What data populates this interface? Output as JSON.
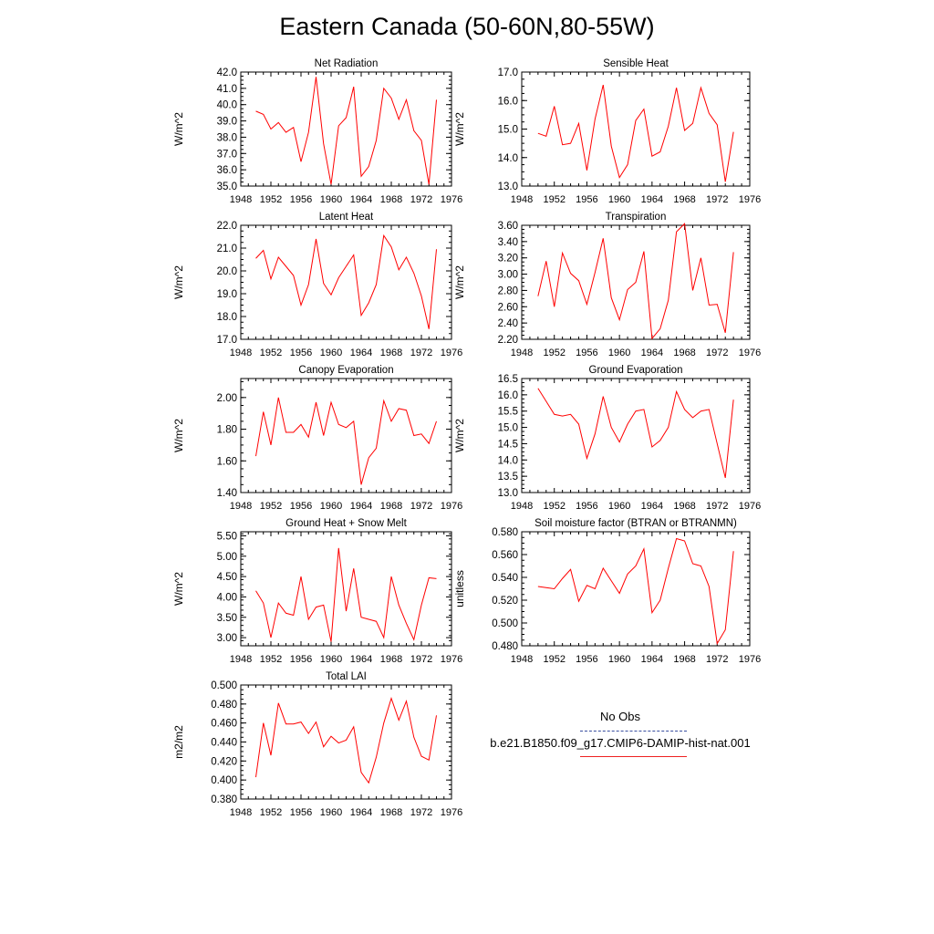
{
  "title": "Eastern Canada (50-60N,80-55W)",
  "legend": {
    "obs_label": "No Obs",
    "model_label": "b.e21.B1850.f09_g17.CMIP6-DAMIP-hist-nat.001",
    "obs_color": "#3a4fa0",
    "model_color": "#ff0000"
  },
  "chart_data": [
    {
      "type": "line",
      "title": "Net Radiation",
      "ylabel": "W/m^2",
      "xlim": [
        1948,
        1976
      ],
      "ylim": [
        35.0,
        42.0
      ],
      "xticks": [
        "1948",
        "1952",
        "1956",
        "1960",
        "1964",
        "1968",
        "1972",
        "1976"
      ],
      "yticks": [
        35.0,
        36.0,
        37.0,
        38.0,
        39.0,
        40.0,
        41.0,
        42.0
      ],
      "ydec": 1,
      "x": [
        1950,
        1951,
        1952,
        1953,
        1954,
        1955,
        1956,
        1957,
        1958,
        1959,
        1960,
        1961,
        1962,
        1963,
        1964,
        1965,
        1966,
        1967,
        1968,
        1969,
        1970,
        1971,
        1972,
        1973,
        1974
      ],
      "series": [
        {
          "values": [
            39.6,
            39.4,
            38.5,
            38.9,
            38.3,
            38.6,
            36.5,
            38.3,
            41.7,
            37.6,
            35.1,
            38.7,
            39.2,
            41.1,
            35.6,
            36.2,
            37.8,
            41.0,
            40.4,
            39.1,
            40.3,
            38.4,
            37.8,
            35.1,
            40.3
          ]
        }
      ]
    },
    {
      "type": "line",
      "title": "Sensible Heat",
      "ylabel": "W/m^2",
      "xlim": [
        1948,
        1976
      ],
      "ylim": [
        13.0,
        17.0
      ],
      "xticks": [
        "1948",
        "1952",
        "1956",
        "1960",
        "1964",
        "1968",
        "1972",
        "1976"
      ],
      "yticks": [
        13.0,
        14.0,
        15.0,
        16.0,
        17.0
      ],
      "ydec": 1,
      "x": [
        1950,
        1951,
        1952,
        1953,
        1954,
        1955,
        1956,
        1957,
        1958,
        1959,
        1960,
        1961,
        1962,
        1963,
        1964,
        1965,
        1966,
        1967,
        1968,
        1969,
        1970,
        1971,
        1972,
        1973,
        1974
      ],
      "series": [
        {
          "values": [
            14.85,
            14.75,
            15.8,
            14.45,
            14.5,
            15.2,
            13.55,
            15.35,
            16.55,
            14.4,
            13.3,
            13.75,
            15.3,
            15.7,
            14.05,
            14.2,
            15.1,
            16.45,
            14.95,
            15.2,
            16.45,
            15.55,
            15.15,
            13.15,
            14.9
          ]
        }
      ]
    },
    {
      "type": "line",
      "title": "Latent Heat",
      "ylabel": "W/m^2",
      "xlim": [
        1948,
        1976
      ],
      "ylim": [
        17.0,
        22.0
      ],
      "xticks": [
        "1948",
        "1952",
        "1956",
        "1960",
        "1964",
        "1968",
        "1972",
        "1976"
      ],
      "yticks": [
        17.0,
        18.0,
        19.0,
        20.0,
        21.0,
        22.0
      ],
      "ydec": 1,
      "x": [
        1950,
        1951,
        1952,
        1953,
        1954,
        1955,
        1956,
        1957,
        1958,
        1959,
        1960,
        1961,
        1962,
        1963,
        1964,
        1965,
        1966,
        1967,
        1968,
        1969,
        1970,
        1971,
        1972,
        1973,
        1974
      ],
      "series": [
        {
          "values": [
            20.55,
            20.9,
            19.65,
            20.6,
            20.2,
            19.8,
            18.5,
            19.4,
            21.4,
            19.45,
            18.95,
            19.7,
            20.2,
            20.7,
            18.05,
            18.6,
            19.4,
            21.55,
            21.05,
            20.05,
            20.6,
            19.9,
            18.9,
            17.45,
            20.95
          ]
        }
      ]
    },
    {
      "type": "line",
      "title": "Transpiration",
      "ylabel": "W/m^2",
      "xlim": [
        1948,
        1976
      ],
      "ylim": [
        2.2,
        3.6
      ],
      "xticks": [
        "1948",
        "1952",
        "1956",
        "1960",
        "1964",
        "1968",
        "1972",
        "1976"
      ],
      "yticks": [
        2.2,
        2.4,
        2.6,
        2.8,
        3.0,
        3.2,
        3.4,
        3.6
      ],
      "ydec": 2,
      "x": [
        1950,
        1951,
        1952,
        1953,
        1954,
        1955,
        1956,
        1957,
        1958,
        1959,
        1960,
        1961,
        1962,
        1963,
        1964,
        1965,
        1966,
        1967,
        1968,
        1969,
        1970,
        1971,
        1972,
        1973,
        1974
      ],
      "series": [
        {
          "values": [
            2.73,
            3.16,
            2.6,
            3.26,
            3.01,
            2.92,
            2.63,
            3.02,
            3.44,
            2.71,
            2.44,
            2.81,
            2.9,
            3.28,
            2.21,
            2.33,
            2.68,
            3.52,
            3.62,
            2.8,
            3.2,
            2.62,
            2.63,
            2.28,
            3.27
          ]
        }
      ]
    },
    {
      "type": "line",
      "title": "Canopy Evaporation",
      "ylabel": "W/m^2",
      "xlim": [
        1948,
        1976
      ],
      "ylim": [
        1.4,
        2.12
      ],
      "xticks": [
        "1948",
        "1952",
        "1956",
        "1960",
        "1964",
        "1968",
        "1972",
        "1976"
      ],
      "yticks": [
        1.4,
        1.6,
        1.8,
        2.0
      ],
      "ydec": 2,
      "x": [
        1950,
        1951,
        1952,
        1953,
        1954,
        1955,
        1956,
        1957,
        1958,
        1959,
        1960,
        1961,
        1962,
        1963,
        1964,
        1965,
        1966,
        1967,
        1968,
        1969,
        1970,
        1971,
        1972,
        1973,
        1974
      ],
      "series": [
        {
          "values": [
            1.63,
            1.91,
            1.7,
            2.0,
            1.78,
            1.78,
            1.83,
            1.75,
            1.97,
            1.76,
            1.97,
            1.83,
            1.81,
            1.85,
            1.45,
            1.62,
            1.68,
            1.98,
            1.85,
            1.93,
            1.92,
            1.76,
            1.77,
            1.71,
            1.85
          ]
        }
      ]
    },
    {
      "type": "line",
      "title": "Ground Evaporation",
      "ylabel": "W/m^2",
      "xlim": [
        1948,
        1976
      ],
      "ylim": [
        13.0,
        16.5
      ],
      "xticks": [
        "1948",
        "1952",
        "1956",
        "1960",
        "1964",
        "1968",
        "1972",
        "1976"
      ],
      "yticks": [
        13.0,
        13.5,
        14.0,
        14.5,
        15.0,
        15.5,
        16.0,
        16.5
      ],
      "ydec": 1,
      "x": [
        1950,
        1951,
        1952,
        1953,
        1954,
        1955,
        1956,
        1957,
        1958,
        1959,
        1960,
        1961,
        1962,
        1963,
        1964,
        1965,
        1966,
        1967,
        1968,
        1969,
        1970,
        1971,
        1972,
        1973,
        1974
      ],
      "series": [
        {
          "values": [
            16.2,
            15.8,
            15.4,
            15.35,
            15.4,
            15.1,
            14.05,
            14.8,
            15.95,
            15.0,
            14.55,
            15.1,
            15.5,
            15.55,
            14.4,
            14.6,
            15.0,
            16.1,
            15.55,
            15.3,
            15.5,
            15.55,
            14.5,
            13.45,
            15.85
          ]
        }
      ]
    },
    {
      "type": "line",
      "title": "Ground Heat + Snow Melt",
      "ylabel": "W/m^2",
      "xlim": [
        1948,
        1976
      ],
      "ylim": [
        2.8,
        5.6
      ],
      "xticks": [
        "1948",
        "1952",
        "1956",
        "1960",
        "1964",
        "1968",
        "1972",
        "1976"
      ],
      "yticks": [
        3.0,
        3.5,
        4.0,
        4.5,
        5.0,
        5.5
      ],
      "ydec": 2,
      "x": [
        1950,
        1951,
        1952,
        1953,
        1954,
        1955,
        1956,
        1957,
        1958,
        1959,
        1960,
        1961,
        1962,
        1963,
        1964,
        1965,
        1966,
        1967,
        1968,
        1969,
        1970,
        1971,
        1972,
        1973,
        1974
      ],
      "series": [
        {
          "values": [
            4.15,
            3.85,
            3.0,
            3.85,
            3.6,
            3.55,
            4.5,
            3.45,
            3.75,
            3.8,
            2.9,
            5.2,
            3.65,
            4.7,
            3.5,
            3.45,
            3.4,
            3.0,
            4.5,
            3.8,
            3.35,
            2.95,
            3.8,
            4.47,
            4.45
          ]
        }
      ]
    },
    {
      "type": "line",
      "title": "Soil moisture factor (BTRAN or BTRANMN)",
      "ylabel": "unitless",
      "xlim": [
        1948,
        1976
      ],
      "ylim": [
        0.48,
        0.58
      ],
      "xticks": [
        "1948",
        "1952",
        "1956",
        "1960",
        "1964",
        "1968",
        "1972",
        "1976"
      ],
      "yticks": [
        0.48,
        0.5,
        0.52,
        0.54,
        0.56,
        0.58
      ],
      "ydec": 3,
      "x": [
        1950,
        1951,
        1952,
        1953,
        1954,
        1955,
        1956,
        1957,
        1958,
        1959,
        1960,
        1961,
        1962,
        1963,
        1964,
        1965,
        1966,
        1967,
        1968,
        1969,
        1970,
        1971,
        1972,
        1973,
        1974
      ],
      "series": [
        {
          "values": [
            0.532,
            0.531,
            0.53,
            0.539,
            0.547,
            0.519,
            0.533,
            0.53,
            0.548,
            0.537,
            0.526,
            0.543,
            0.55,
            0.565,
            0.509,
            0.52,
            0.548,
            0.574,
            0.572,
            0.552,
            0.55,
            0.532,
            0.482,
            0.494,
            0.563
          ]
        }
      ]
    },
    {
      "type": "line",
      "title": "Total LAI",
      "ylabel": "m2/m2",
      "xlim": [
        1948,
        1976
      ],
      "ylim": [
        0.38,
        0.5
      ],
      "xticks": [
        "1948",
        "1952",
        "1956",
        "1960",
        "1964",
        "1968",
        "1972",
        "1976"
      ],
      "yticks": [
        0.38,
        0.4,
        0.42,
        0.44,
        0.46,
        0.48,
        0.5
      ],
      "ydec": 3,
      "x": [
        1950,
        1951,
        1952,
        1953,
        1954,
        1955,
        1956,
        1957,
        1958,
        1959,
        1960,
        1961,
        1962,
        1963,
        1964,
        1965,
        1966,
        1967,
        1968,
        1969,
        1970,
        1971,
        1972,
        1973,
        1974
      ],
      "series": [
        {
          "values": [
            0.403,
            0.46,
            0.426,
            0.481,
            0.459,
            0.459,
            0.461,
            0.449,
            0.461,
            0.435,
            0.446,
            0.439,
            0.442,
            0.456,
            0.408,
            0.397,
            0.424,
            0.46,
            0.486,
            0.463,
            0.483,
            0.445,
            0.425,
            0.421,
            0.468
          ]
        }
      ]
    }
  ]
}
